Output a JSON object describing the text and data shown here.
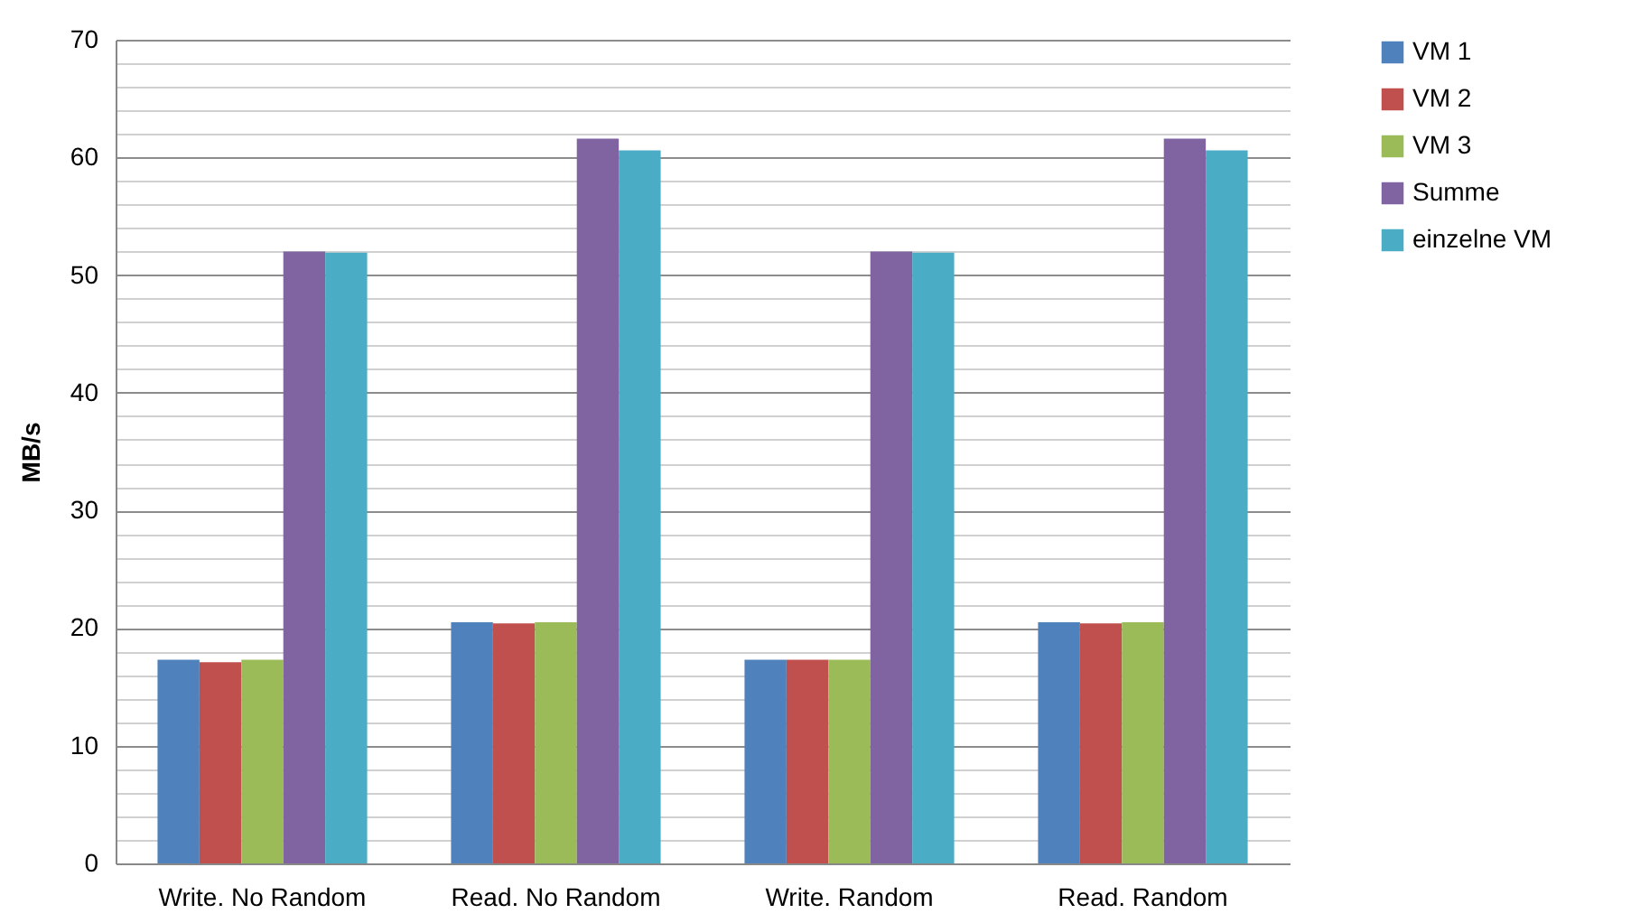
{
  "chart_data": {
    "type": "bar",
    "ylabel": "MB/s",
    "categories": [
      "Write. No Random",
      "Read. No Random",
      "Write. Random",
      "Read. Random"
    ],
    "series": [
      {
        "name": "VM 1",
        "color": "#4f81bd",
        "values": [
          17.3,
          20.5,
          17.3,
          20.5
        ]
      },
      {
        "name": "VM 2",
        "color": "#c0504d",
        "values": [
          17.1,
          20.4,
          17.3,
          20.4
        ]
      },
      {
        "name": "VM 3",
        "color": "#9bbb59",
        "values": [
          17.3,
          20.5,
          17.3,
          20.5
        ]
      },
      {
        "name": "Summe",
        "color": "#8064a2",
        "values": [
          52.0,
          61.6,
          52.0,
          61.6
        ]
      },
      {
        "name": "einzelne VM",
        "color": "#4bacc6",
        "values": [
          51.9,
          60.6,
          51.9,
          60.6
        ]
      }
    ],
    "ylim": [
      0,
      70
    ],
    "yticks": [
      0,
      {
        "value": 2,
        "label": null
      },
      {
        "value": 4,
        "label": null
      },
      {
        "value": 6,
        "label": null
      },
      {
        "value": 8,
        "label": null
      },
      10,
      {
        "value": 12,
        "label": null
      },
      {
        "value": 14,
        "label": null
      },
      {
        "value": 16,
        "label": null
      },
      {
        "value": 18,
        "label": null
      },
      20,
      {
        "value": 22,
        "label": null
      },
      {
        "value": 24,
        "label": null
      },
      {
        "value": 26,
        "label": null
      },
      {
        "value": 28,
        "label": null
      },
      30,
      {
        "value": 32,
        "label": null
      },
      {
        "value": 34,
        "label": null
      },
      {
        "value": 36,
        "label": null
      },
      {
        "value": 38,
        "label": null
      },
      40,
      {
        "value": 42,
        "label": null
      },
      {
        "value": 44,
        "label": null
      },
      {
        "value": 46,
        "label": null
      },
      {
        "value": 48,
        "label": null
      },
      50,
      {
        "value": 52,
        "label": null
      },
      {
        "value": 54,
        "label": null
      },
      {
        "value": 56,
        "label": null
      },
      {
        "value": 58,
        "label": null
      },
      60,
      {
        "value": 62,
        "label": null
      },
      {
        "value": 64,
        "label": null
      },
      {
        "value": 66,
        "label": null
      },
      {
        "value": 68,
        "label": null
      },
      70
    ],
    "grid": "y",
    "legend": "right"
  }
}
